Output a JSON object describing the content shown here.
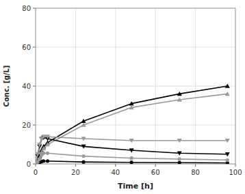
{
  "chart_data": {
    "type": "line",
    "title": "",
    "xlabel": "Time [h]",
    "ylabel": "Conc. [g/L]",
    "x": [
      0,
      1,
      2,
      3,
      4,
      6,
      24,
      48,
      72,
      96
    ],
    "xlim": [
      0,
      100
    ],
    "ylim": [
      0,
      80
    ],
    "xticks": [
      0,
      20,
      40,
      60,
      80,
      100
    ],
    "yticks": [
      0,
      20,
      40,
      60,
      80
    ],
    "grid": true,
    "series": [
      {
        "color": "#000000",
        "marker": "triangle-up",
        "values": [
          0,
          1.5,
          4,
          7,
          9,
          11,
          22,
          31,
          36,
          40
        ]
      },
      {
        "color": "#999999",
        "marker": "triangle-up",
        "values": [
          0,
          1,
          3,
          6,
          8,
          10,
          20,
          29,
          33,
          36
        ]
      },
      {
        "color": "#000000",
        "marker": "triangle-down",
        "values": [
          0,
          4,
          9,
          13,
          13.5,
          13,
          9,
          7,
          5.5,
          5
        ]
      },
      {
        "color": "#999999",
        "marker": "triangle-down",
        "values": [
          0,
          5,
          10,
          13,
          14,
          14,
          13,
          12,
          12,
          12
        ]
      },
      {
        "color": "#000000",
        "marker": "circle",
        "values": [
          0,
          0.3,
          0.7,
          1.2,
          1.5,
          1.5,
          1.0,
          0.8,
          0.7,
          0.5
        ]
      },
      {
        "color": "#999999",
        "marker": "circle",
        "values": [
          0,
          1,
          2.5,
          4.5,
          5.5,
          5.5,
          4,
          3,
          2.5,
          2
        ]
      }
    ]
  }
}
